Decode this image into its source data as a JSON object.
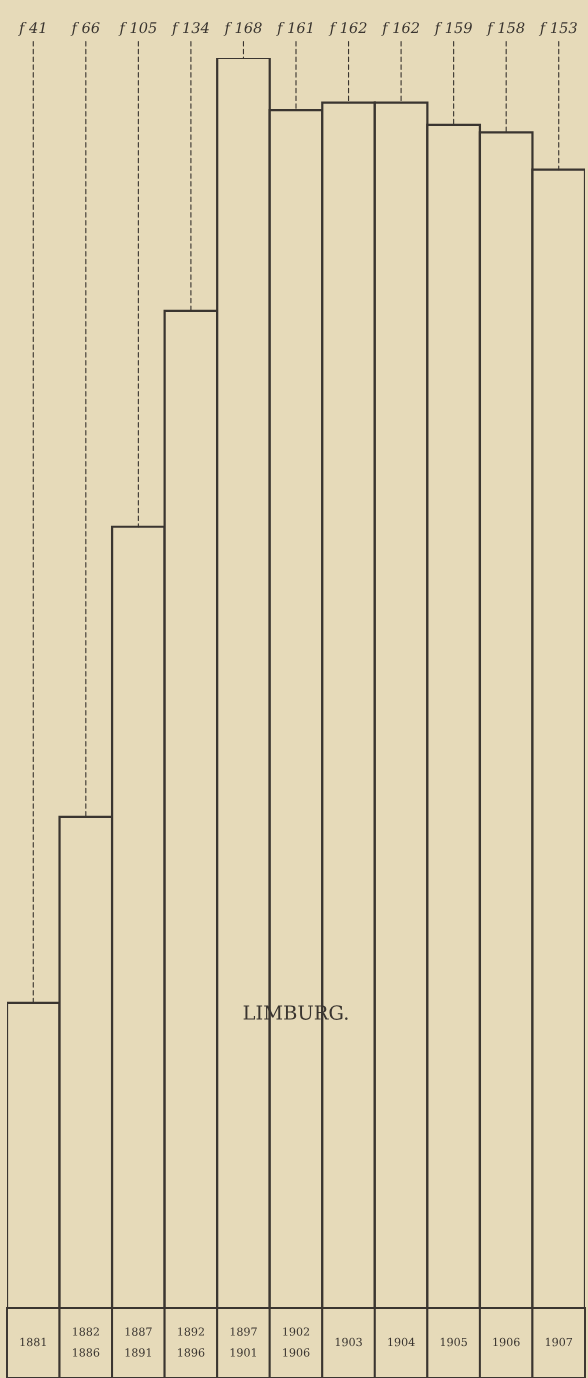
{
  "chart_data": {
    "type": "bar",
    "title": "LIMBURG.",
    "categories": [
      "1881",
      "1882\n1886",
      "1887\n1891",
      "1892\n1896",
      "1897\n1901",
      "1902\n1906",
      "1903",
      "1904",
      "1905",
      "1906",
      "1907"
    ],
    "values": [
      41,
      66,
      105,
      134,
      168,
      161,
      162,
      162,
      159,
      158,
      153
    ],
    "value_labels": [
      "f 41",
      "f 66",
      "f 105",
      "f 134",
      "f 168",
      "f 161",
      "f 162",
      "f 162",
      "f 159",
      "f 158",
      "f 153"
    ],
    "color": "#e6dab9",
    "legend": false
  }
}
